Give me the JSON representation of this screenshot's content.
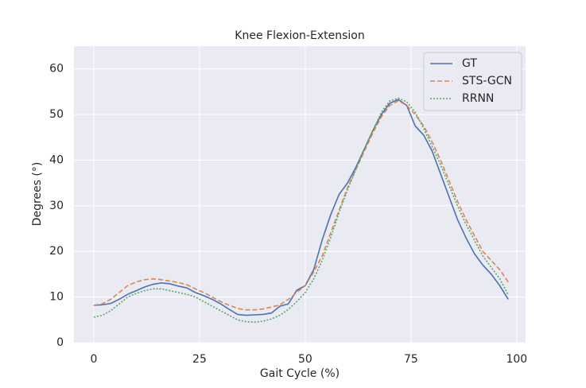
{
  "chart_data": {
    "type": "line",
    "title": "Knee Flexion-Extension",
    "xlabel": "Gait Cycle (%)",
    "ylabel": "Degrees (°)",
    "x": [
      0,
      2,
      4,
      6,
      8,
      10,
      12,
      14,
      16,
      18,
      20,
      22,
      24,
      26,
      28,
      30,
      32,
      34,
      36,
      38,
      40,
      42,
      44,
      46,
      48,
      50,
      52,
      54,
      56,
      58,
      60,
      62,
      64,
      66,
      68,
      70,
      72,
      74,
      76,
      78,
      80,
      82,
      84,
      86,
      88,
      90,
      92,
      94,
      96,
      98
    ],
    "series": [
      {
        "name": "GT",
        "color": "#4c72b0",
        "style": "solid",
        "values": [
          8.2,
          8.3,
          8.6,
          9.5,
          10.6,
          11.4,
          12.2,
          12.8,
          13.1,
          12.9,
          12.4,
          12,
          11,
          10.3,
          9.5,
          8.5,
          7.3,
          6.2,
          6,
          6.1,
          6.2,
          6.5,
          8,
          8.5,
          11.5,
          12.5,
          16,
          22.5,
          28,
          32.5,
          35,
          38.5,
          42.5,
          46.5,
          50,
          52.5,
          53.3,
          52,
          47.5,
          45.5,
          42,
          37,
          32,
          27,
          23,
          19.5,
          17,
          15,
          12.5,
          9.5
        ]
      },
      {
        "name": "STS-GCN",
        "color": "#dd8452",
        "style": "dashed",
        "values": [
          8.2,
          8.5,
          9.5,
          11,
          12.5,
          13.3,
          13.8,
          14,
          13.8,
          13.5,
          13.2,
          12.7,
          11.8,
          11,
          10,
          9,
          8.2,
          7.5,
          7.2,
          7.2,
          7.4,
          7.8,
          8.3,
          9.5,
          11,
          12.5,
          15.5,
          19,
          24,
          29,
          34,
          38,
          42,
          46,
          49.5,
          52,
          53,
          52,
          50,
          47.5,
          44,
          40,
          35.5,
          31,
          27,
          23.5,
          20,
          18,
          16,
          13.3
        ]
      },
      {
        "name": "RRNN",
        "color": "#55a868",
        "style": "dotted",
        "values": [
          5.6,
          6,
          7,
          8.5,
          10,
          10.8,
          11.4,
          11.8,
          11.8,
          11.4,
          11,
          10.6,
          10,
          9,
          8,
          7,
          6,
          5,
          4.6,
          4.5,
          4.7,
          5.2,
          6,
          7.3,
          9,
          11,
          14,
          18,
          23,
          28.5,
          33.5,
          38,
          42.5,
          46.5,
          50.5,
          53,
          53.6,
          52.8,
          50.5,
          47,
          43,
          39,
          34.5,
          30,
          26,
          22.5,
          19,
          16.5,
          14,
          10.5
        ]
      }
    ],
    "xlim": [
      -4.7,
      102.1
    ],
    "xticks": [
      0,
      25,
      50,
      75,
      100
    ],
    "ylim": [
      0,
      65
    ],
    "yticks": [
      0,
      10,
      20,
      30,
      40,
      50,
      60
    ],
    "grid": true,
    "legend": "upper right"
  }
}
